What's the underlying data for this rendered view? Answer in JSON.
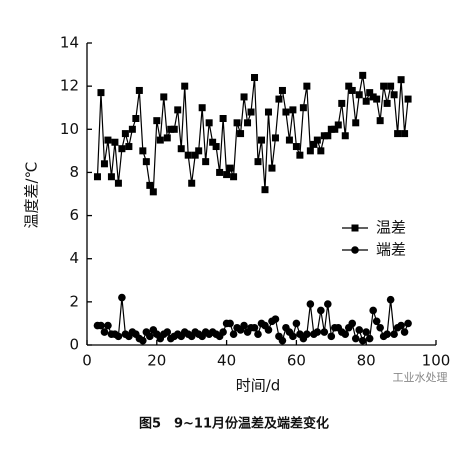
{
  "chart_data": {
    "type": "line",
    "xlabel": "时间/d",
    "ylabel": "温度差/℃",
    "caption": "图5　9~11月份温差及端差变化",
    "watermark": "工业水处理",
    "x": [
      3,
      4,
      5,
      6,
      7,
      8,
      9,
      10,
      11,
      12,
      13,
      14,
      15,
      16,
      17,
      18,
      19,
      20,
      21,
      22,
      23,
      24,
      25,
      26,
      27,
      28,
      29,
      30,
      31,
      32,
      33,
      34,
      35,
      36,
      37,
      38,
      39,
      40,
      41,
      42,
      43,
      44,
      45,
      46,
      47,
      48,
      49,
      50,
      51,
      52,
      53,
      54,
      55,
      56,
      57,
      58,
      59,
      60,
      61,
      62,
      63,
      64,
      65,
      66,
      67,
      68,
      69,
      70,
      71,
      72,
      73,
      74,
      75,
      76,
      77,
      78,
      79,
      80,
      81,
      82,
      83,
      84,
      85,
      86,
      87,
      88,
      89,
      90,
      91,
      92
    ],
    "series": [
      {
        "name": "温差",
        "color": "#000000",
        "marker": "square",
        "values": [
          7.8,
          11.7,
          8.4,
          9.5,
          7.8,
          9.4,
          7.5,
          9.1,
          9.8,
          9.2,
          10,
          10.5,
          11.8,
          9,
          8.5,
          7.4,
          7.1,
          10.4,
          9.5,
          11.5,
          9.6,
          10,
          10,
          10.9,
          9.1,
          12,
          8.8,
          7.5,
          8.8,
          9,
          11,
          8.5,
          10.3,
          9.4,
          9.2,
          8,
          10.5,
          7.9,
          8.2,
          7.8,
          10.3,
          9.8,
          11.5,
          10.3,
          10.8,
          12.4,
          8.5,
          9.5,
          7.2,
          10.8,
          8.2,
          9.6,
          11.4,
          11.8,
          10.8,
          9.5,
          10.9,
          9.2,
          8.8,
          11,
          12,
          9,
          9.3,
          9.5,
          9,
          9.7,
          9.7,
          10,
          10,
          10.2,
          11.2,
          9.7,
          12,
          11.8,
          10.3,
          11.6,
          12.5,
          11.3,
          11.7,
          11.5,
          11.4,
          10.4,
          12,
          11.2,
          12,
          11.6,
          9.8,
          12.3,
          9.8,
          11.4
        ]
      },
      {
        "name": "端差",
        "color": "#000000",
        "marker": "circle",
        "values": [
          0.9,
          0.9,
          0.6,
          0.9,
          0.5,
          0.5,
          0.4,
          2.2,
          0.5,
          0.4,
          0.6,
          0.5,
          0.3,
          0.2,
          0.6,
          0.4,
          0.7,
          0.5,
          0.3,
          0.5,
          0.6,
          0.3,
          0.4,
          0.5,
          0.4,
          0.6,
          0.5,
          0.4,
          0.6,
          0.5,
          0.4,
          0.6,
          0.5,
          0.6,
          0.5,
          0.4,
          0.6,
          1,
          1,
          0.5,
          0.8,
          0.7,
          0.9,
          0.6,
          0.8,
          0.8,
          0.5,
          1,
          0.9,
          0.7,
          1.1,
          1.2,
          0.4,
          0.2,
          0.8,
          0.6,
          0.4,
          1,
          0.5,
          0.3,
          0.5,
          1.9,
          0.5,
          0.6,
          1.6,
          0.6,
          1.9,
          0.4,
          0.8,
          0.8,
          0.6,
          0.5,
          0.8,
          1,
          0.3,
          0.7,
          0.2,
          0.6,
          0.3,
          1.6,
          1.1,
          0.8,
          0.4,
          0.5,
          2.1,
          0.5,
          0.8,
          0.9,
          0.6,
          1
        ]
      }
    ],
    "xlim": [
      0,
      100
    ],
    "xticks": [
      0,
      20,
      40,
      60,
      80,
      100
    ],
    "ylim": [
      0,
      14
    ],
    "yticks": [
      0,
      2,
      4,
      6,
      8,
      10,
      12,
      14
    ],
    "legend": "right"
  }
}
